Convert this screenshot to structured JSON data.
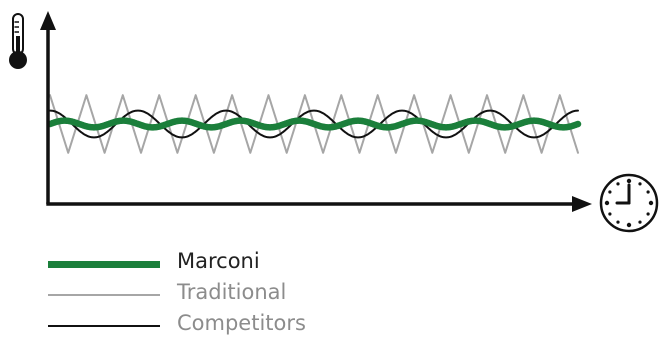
{
  "chart_data": {
    "type": "line",
    "title": "",
    "xlabel": "",
    "ylabel": "",
    "axis_icons": {
      "y": "thermometer-icon",
      "x": "clock-icon"
    },
    "grid": false,
    "legend_position": "bottom-left",
    "x": {
      "ticks_shown": false,
      "domain": [
        0,
        100
      ]
    },
    "y": {
      "ticks_shown": false,
      "domain": [
        -1,
        1
      ]
    },
    "series": [
      {
        "name": "Traditional",
        "color": "#a6a6a6",
        "shape": "triangle",
        "amplitude": 0.6,
        "baseline": 0.0,
        "cycles": 14.5,
        "phase": 0.0
      },
      {
        "name": "Competitors",
        "color": "#111111",
        "shape": "sine",
        "amplitude": 0.28,
        "baseline": 0.0,
        "cycles": 6.0,
        "phase": 1.5708
      },
      {
        "name": "Marconi",
        "color": "#1b7f3b",
        "shape": "sine",
        "amplitude": 0.07,
        "baseline": 0.0,
        "cycles": 9.0,
        "phase": 0.0
      }
    ]
  },
  "legend": [
    {
      "label": "Marconi",
      "color": "#1b7f3b",
      "thickness": 7,
      "tone": "primary"
    },
    {
      "label": "Traditional",
      "color": "#a6a6a6",
      "thickness": 2,
      "tone": "muted"
    },
    {
      "label": "Competitors",
      "color": "#111111",
      "thickness": 2,
      "tone": "muted"
    }
  ]
}
